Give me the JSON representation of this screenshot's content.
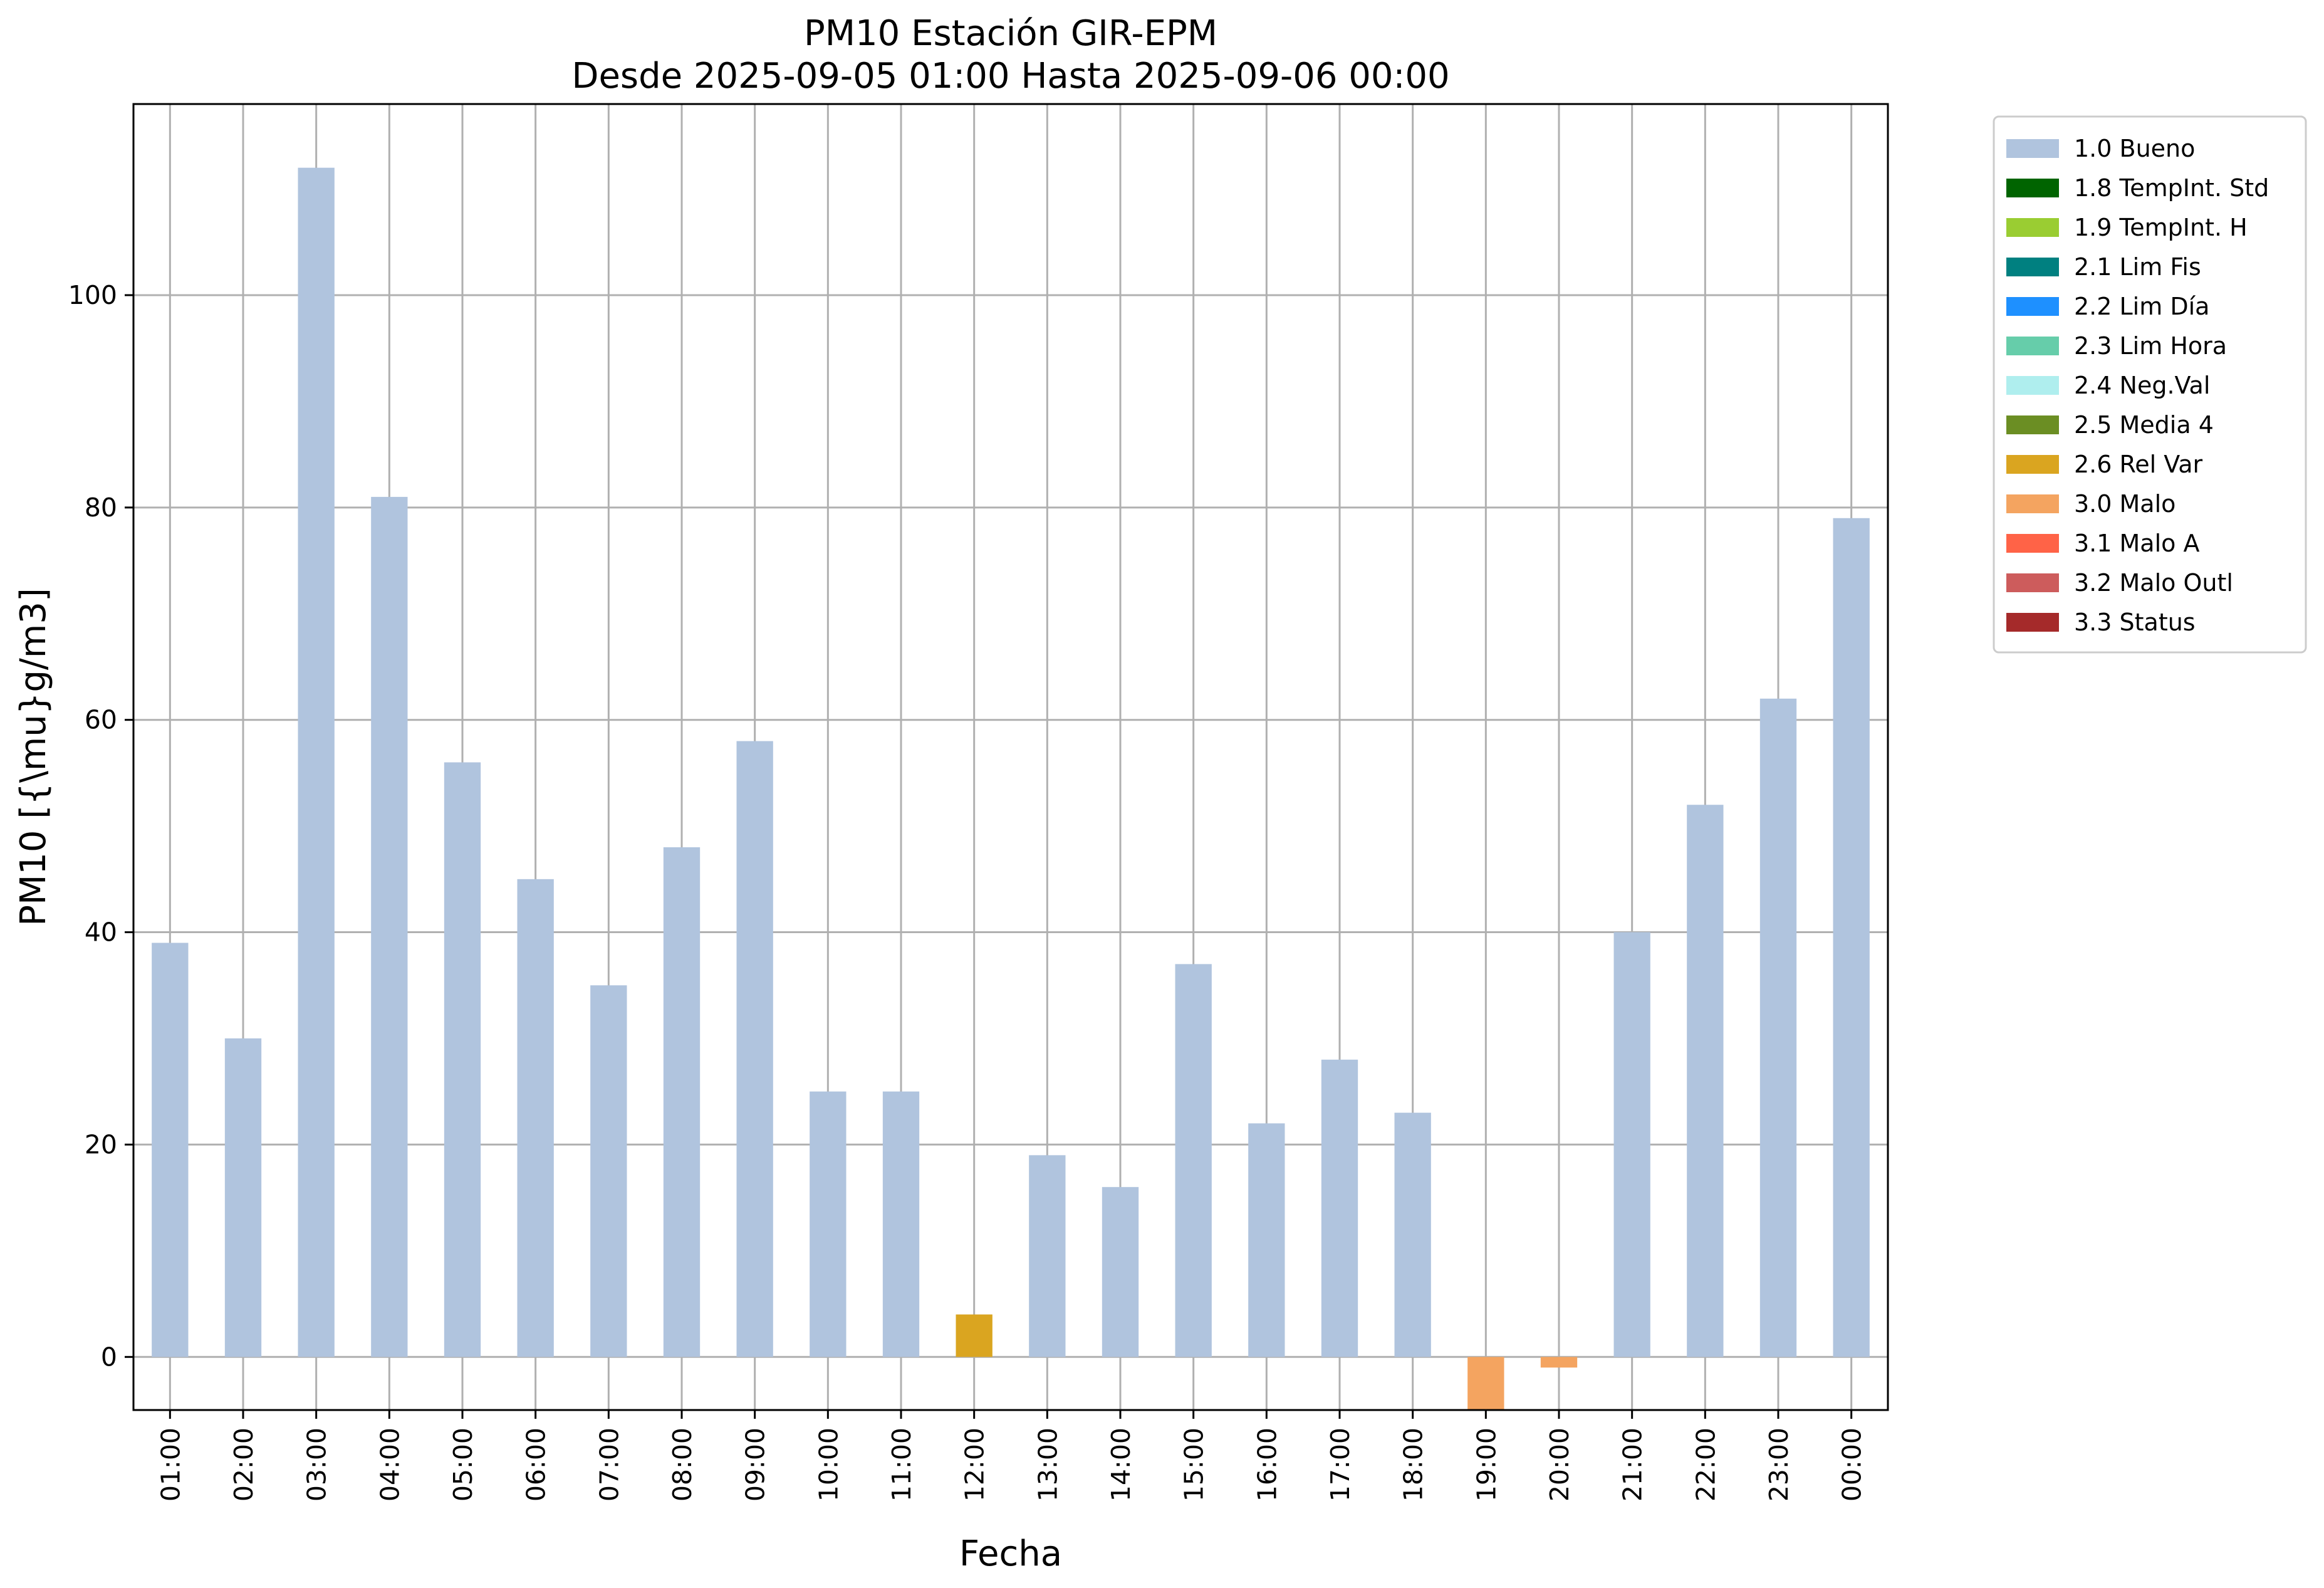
{
  "chart_data": {
    "type": "bar",
    "title_lines": [
      "PM10 Estación GIR-EPM",
      "Desde 2025-09-05 01:00 Hasta 2025-09-06 00:00"
    ],
    "xlabel": "Fecha",
    "ylabel": "PM10 [{\\mu}g/m3]",
    "ylim": [
      -5,
      118
    ],
    "yticks": [
      0,
      20,
      40,
      60,
      80,
      100
    ],
    "grid": true,
    "legend_placement": "outside-top-right",
    "categories": [
      "01:00",
      "02:00",
      "03:00",
      "04:00",
      "05:00",
      "06:00",
      "07:00",
      "08:00",
      "09:00",
      "10:00",
      "11:00",
      "12:00",
      "13:00",
      "14:00",
      "15:00",
      "16:00",
      "17:00",
      "18:00",
      "19:00",
      "20:00",
      "21:00",
      "22:00",
      "23:00",
      "00:00"
    ],
    "values": [
      39,
      30,
      112,
      81,
      56,
      45,
      35,
      48,
      58,
      25,
      25,
      4,
      19,
      16,
      37,
      22,
      28,
      23,
      -5,
      -1,
      40,
      52,
      62,
      79
    ],
    "flags": [
      "1.0 Bueno",
      "1.0 Bueno",
      "1.0 Bueno",
      "1.0 Bueno",
      "1.0 Bueno",
      "1.0 Bueno",
      "1.0 Bueno",
      "1.0 Bueno",
      "1.0 Bueno",
      "1.0 Bueno",
      "1.0 Bueno",
      "2.6 Rel Var",
      "1.0 Bueno",
      "1.0 Bueno",
      "1.0 Bueno",
      "1.0 Bueno",
      "1.0 Bueno",
      "1.0 Bueno",
      "3.0 Malo",
      "3.0 Malo",
      "1.0 Bueno",
      "1.0 Bueno",
      "1.0 Bueno",
      "1.0 Bueno"
    ],
    "legend": [
      {
        "label": "1.0 Bueno",
        "color": "#b0c4de"
      },
      {
        "label": "1.8 TempInt. Std",
        "color": "#006400"
      },
      {
        "label": "1.9 TempInt. H",
        "color": "#9acd32"
      },
      {
        "label": "2.1 Lim Fis",
        "color": "#008080"
      },
      {
        "label": "2.2 Lim Día",
        "color": "#1e90ff"
      },
      {
        "label": "2.3 Lim Hora",
        "color": "#66cdaa"
      },
      {
        "label": "2.4 Neg.Val",
        "color": "#afeeee"
      },
      {
        "label": "2.5 Media 4",
        "color": "#6b8e23"
      },
      {
        "label": "2.6 Rel Var",
        "color": "#daa520"
      },
      {
        "label": "3.0 Malo",
        "color": "#f4a460"
      },
      {
        "label": "3.1 Malo A",
        "color": "#ff6347"
      },
      {
        "label": "3.2 Malo Outl",
        "color": "#cd5c5c"
      },
      {
        "label": "3.3 Status",
        "color": "#a52a2a"
      }
    ]
  }
}
